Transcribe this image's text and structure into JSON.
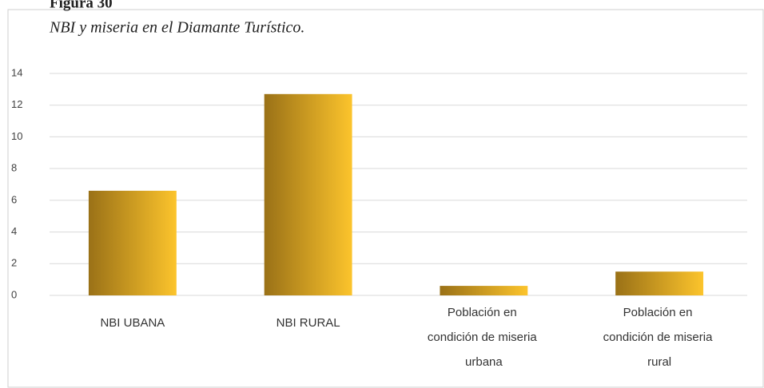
{
  "chart_data": {
    "type": "bar",
    "title": "Figura 30",
    "subtitle": "NBI y miseria en el Diamante Turístico.",
    "categories": [
      "NBI UBANA",
      "NBI RURAL",
      "Población en condición de miseria urbana",
      "Población en condición de miseria rural"
    ],
    "values": [
      6.6,
      12.7,
      0.6,
      1.5
    ],
    "color": [
      "#9a7117",
      "#fcc42c"
    ],
    "ylim": [
      0,
      14
    ],
    "yticks": [
      0,
      2,
      4,
      6,
      8,
      10,
      12,
      14
    ],
    "grid": true
  }
}
